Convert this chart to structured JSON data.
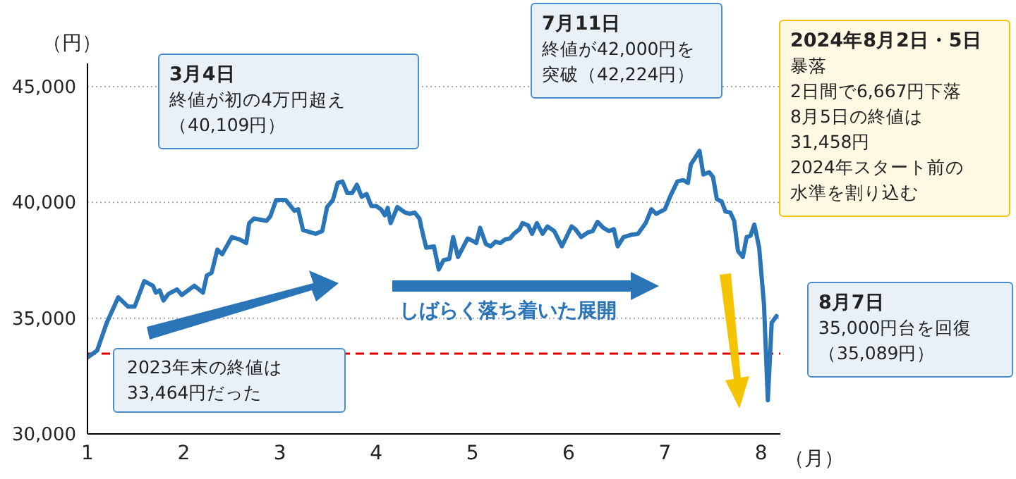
{
  "chart_data": {
    "type": "line",
    "xlabel": "（月）",
    "ylabel": "（円）",
    "x": [
      1.0,
      1.1,
      1.2,
      1.32,
      1.42,
      1.49,
      1.59,
      1.68,
      1.71,
      1.75,
      1.79,
      1.84,
      1.93,
      1.98,
      2.11,
      2.2,
      2.24,
      2.29,
      2.35,
      2.4,
      2.5,
      2.58,
      2.65,
      2.68,
      2.73,
      2.86,
      2.9,
      2.96,
      3.06,
      3.15,
      3.19,
      3.24,
      3.32,
      3.37,
      3.44,
      3.49,
      3.55,
      3.6,
      3.65,
      3.7,
      3.75,
      3.8,
      3.85,
      3.9,
      3.95,
      4.0,
      4.05,
      4.09,
      4.12,
      4.15,
      4.22,
      4.3,
      4.35,
      4.4,
      4.45,
      4.47,
      4.52,
      4.6,
      4.65,
      4.7,
      4.76,
      4.8,
      4.85,
      4.95,
      5.02,
      5.04,
      5.08,
      5.14,
      5.19,
      5.24,
      5.29,
      5.34,
      5.39,
      5.43,
      5.49,
      5.52,
      5.58,
      5.62,
      5.67,
      5.73,
      5.78,
      5.85,
      5.93,
      6.03,
      6.07,
      6.13,
      6.2,
      6.25,
      6.3,
      6.36,
      6.42,
      6.47,
      6.51,
      6.57,
      6.65,
      6.72,
      6.8,
      6.86,
      6.91,
      7.0,
      7.06,
      7.13,
      7.19,
      7.24,
      7.27,
      7.32,
      7.36,
      7.4,
      7.46,
      7.5,
      7.54,
      7.59,
      7.63,
      7.68,
      7.72,
      7.76,
      7.81,
      7.85,
      7.89,
      7.93,
      7.98,
      8.03,
      8.07,
      8.11,
      8.16
    ],
    "values": [
      33300,
      33600,
      34800,
      35900,
      35500,
      35500,
      36600,
      36400,
      36100,
      36200,
      35760,
      36040,
      36240,
      36000,
      36400,
      36100,
      36840,
      36960,
      37960,
      37760,
      38500,
      38400,
      38240,
      39100,
      39300,
      39200,
      39400,
      40100,
      40100,
      39640,
      39700,
      38800,
      38700,
      38640,
      38760,
      39800,
      40100,
      40840,
      40900,
      40400,
      40400,
      40760,
      40240,
      40360,
      39840,
      39840,
      39700,
      39440,
      39760,
      39100,
      39800,
      39560,
      39500,
      39560,
      39300,
      38900,
      38040,
      38100,
      37100,
      37500,
      37560,
      38500,
      37640,
      38440,
      38300,
      38240,
      38900,
      38200,
      38100,
      38300,
      38240,
      38400,
      38440,
      38640,
      38840,
      39100,
      39000,
      38640,
      39100,
      38640,
      38960,
      38760,
      38100,
      38960,
      38840,
      38500,
      38700,
      38760,
      39160,
      38900,
      38760,
      38840,
      38100,
      38500,
      38600,
      38640,
      39100,
      39700,
      39500,
      39700,
      40300,
      40900,
      40960,
      40840,
      41640,
      41960,
      42224,
      41200,
      41300,
      41100,
      40140,
      40040,
      39600,
      39560,
      39200,
      37900,
      37640,
      38500,
      38560,
      39040,
      38040,
      35600,
      31458,
      34800,
      35089
    ],
    "color": "#2a74b8",
    "xlim": [
      1,
      8.2
    ],
    "xticks": [
      1,
      2,
      3,
      4,
      5,
      6,
      7,
      8
    ],
    "ylim": [
      30000,
      46000
    ],
    "yticks": [
      {
        "value": 30000,
        "label": "30,000"
      },
      {
        "value": 35000,
        "label": "35,000"
      },
      {
        "value": 40000,
        "label": "40,000"
      },
      {
        "value": 45000,
        "label": "45,000"
      }
    ],
    "grid": "y",
    "ref_lines": [
      {
        "axis": "y",
        "value": 33464,
        "label": "2023年末の終値は\n33,464円だった",
        "color": "#e00000",
        "line_style": "dashed"
      }
    ],
    "annotations": [
      "3月4日",
      "終値が初の4万円超え",
      "（40,109円）",
      "7月11日",
      "終値が42,000円を",
      "突破（42,224円）",
      "2024年8月2日・5日",
      "暴落",
      "2日間で6,667円下落",
      "8月5日の終値は",
      "31,458円",
      "2024年スタート前の",
      "水準を割り込む",
      "8月7日",
      "35,000円台を回復",
      "（35,089円）",
      "しばらく落ち着いた展開"
    ]
  }
}
